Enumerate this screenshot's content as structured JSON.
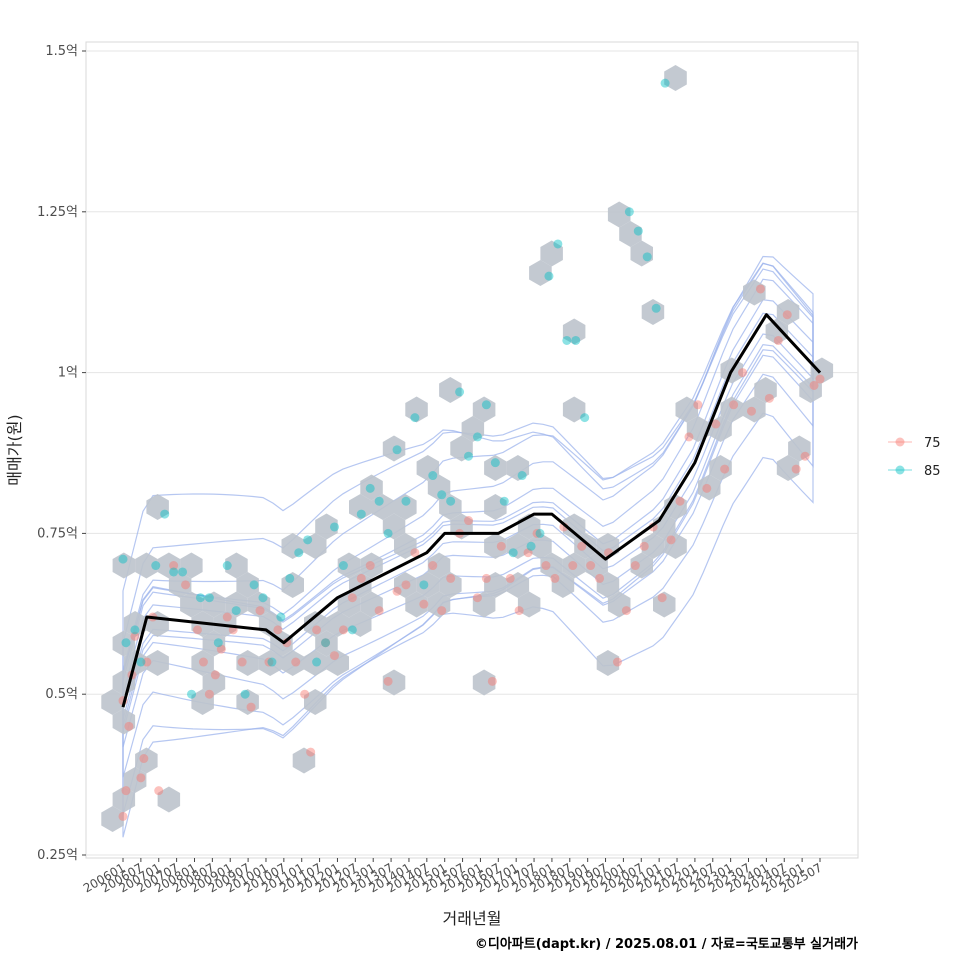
{
  "chart_data": {
    "type": "scatter",
    "xlabel": "거래년월",
    "ylabel": "매매가(원)",
    "caption": "©디아파트(dapt.kr) / 2025.08.01 / 자료=국토교통부 실거래가",
    "grid": true,
    "legend_position": "right",
    "ylim": [
      0.25,
      1.5
    ],
    "y_ticks": [
      {
        "value": 0.25,
        "label": "0.25억"
      },
      {
        "value": 0.5,
        "label": "0.5억"
      },
      {
        "value": 0.75,
        "label": "0.75억"
      },
      {
        "value": 1.0,
        "label": "1억"
      },
      {
        "value": 1.25,
        "label": "1.25억"
      },
      {
        "value": 1.5,
        "label": "1.5억"
      }
    ],
    "x_ticks": [
      "200601",
      "200607",
      "200701",
      "200707",
      "200801",
      "200807",
      "200901",
      "200907",
      "201001",
      "201007",
      "201101",
      "201107",
      "201201",
      "201207",
      "201301",
      "201307",
      "201401",
      "201407",
      "201501",
      "201507",
      "201601",
      "201607",
      "201701",
      "201707",
      "201801",
      "201807",
      "201901",
      "201907",
      "202001",
      "202007",
      "202101",
      "202107",
      "202201",
      "202207",
      "202301",
      "202307",
      "202401",
      "202407",
      "202501",
      "202507"
    ],
    "series": [
      {
        "name": "75",
        "color": "#F8766D",
        "points": [
          [
            "200601",
            0.49
          ],
          [
            "200601",
            0.31
          ],
          [
            "200602",
            0.35
          ],
          [
            "200603",
            0.45
          ],
          [
            "200604",
            0.53
          ],
          [
            "200605",
            0.59
          ],
          [
            "200607",
            0.37
          ],
          [
            "200608",
            0.4
          ],
          [
            "200609",
            0.55
          ],
          [
            "200611",
            0.62
          ],
          [
            "200701",
            0.35
          ],
          [
            "200706",
            0.7
          ],
          [
            "200710",
            0.67
          ],
          [
            "200802",
            0.6
          ],
          [
            "200804",
            0.55
          ],
          [
            "200806",
            0.5
          ],
          [
            "200808",
            0.53
          ],
          [
            "200810",
            0.57
          ],
          [
            "200812",
            0.62
          ],
          [
            "200902",
            0.6
          ],
          [
            "200905",
            0.55
          ],
          [
            "200908",
            0.48
          ],
          [
            "200911",
            0.63
          ],
          [
            "201002",
            0.55
          ],
          [
            "201005",
            0.6
          ],
          [
            "201008",
            0.58
          ],
          [
            "201011",
            0.55
          ],
          [
            "201102",
            0.5
          ],
          [
            "201104",
            0.41
          ],
          [
            "201106",
            0.6
          ],
          [
            "201109",
            0.58
          ],
          [
            "201112",
            0.56
          ],
          [
            "201203",
            0.6
          ],
          [
            "201206",
            0.65
          ],
          [
            "201209",
            0.68
          ],
          [
            "201212",
            0.7
          ],
          [
            "201303",
            0.63
          ],
          [
            "201306",
            0.52
          ],
          [
            "201309",
            0.66
          ],
          [
            "201312",
            0.67
          ],
          [
            "201403",
            0.72
          ],
          [
            "201406",
            0.64
          ],
          [
            "201409",
            0.7
          ],
          [
            "201412",
            0.63
          ],
          [
            "201503",
            0.68
          ],
          [
            "201506",
            0.75
          ],
          [
            "201509",
            0.77
          ],
          [
            "201512",
            0.65
          ],
          [
            "201603",
            0.68
          ],
          [
            "201605",
            0.52
          ],
          [
            "201608",
            0.73
          ],
          [
            "201611",
            0.68
          ],
          [
            "201702",
            0.63
          ],
          [
            "201705",
            0.72
          ],
          [
            "201708",
            0.75
          ],
          [
            "201711",
            0.7
          ],
          [
            "201802",
            0.68
          ],
          [
            "201805",
            0.76
          ],
          [
            "201808",
            0.7
          ],
          [
            "201811",
            0.73
          ],
          [
            "201902",
            0.7
          ],
          [
            "201905",
            0.68
          ],
          [
            "201908",
            0.72
          ],
          [
            "201911",
            0.55
          ],
          [
            "202002",
            0.63
          ],
          [
            "202005",
            0.7
          ],
          [
            "202008",
            0.73
          ],
          [
            "202011",
            0.76
          ],
          [
            "202102",
            0.65
          ],
          [
            "202105",
            0.74
          ],
          [
            "202108",
            0.8
          ],
          [
            "202111",
            0.9
          ],
          [
            "202202",
            0.95
          ],
          [
            "202205",
            0.82
          ],
          [
            "202208",
            0.92
          ],
          [
            "202211",
            0.85
          ],
          [
            "202302",
            0.95
          ],
          [
            "202305",
            1.0
          ],
          [
            "202308",
            0.94
          ],
          [
            "202311",
            1.13
          ],
          [
            "202402",
            0.96
          ],
          [
            "202405",
            1.05
          ],
          [
            "202408",
            1.09
          ],
          [
            "202411",
            0.85
          ],
          [
            "202502",
            0.87
          ],
          [
            "202505",
            0.98
          ],
          [
            "202507",
            0.99
          ]
        ]
      },
      {
        "name": "85",
        "color": "#00BFC4",
        "points": [
          [
            "200601",
            0.71
          ],
          [
            "200602",
            0.58
          ],
          [
            "200605",
            0.6
          ],
          [
            "200607",
            0.55
          ],
          [
            "200612",
            0.7
          ],
          [
            "200703",
            0.78
          ],
          [
            "200706",
            0.69
          ],
          [
            "200709",
            0.69
          ],
          [
            "200712",
            0.5
          ],
          [
            "200803",
            0.65
          ],
          [
            "200806",
            0.65
          ],
          [
            "200809",
            0.58
          ],
          [
            "200812",
            0.7
          ],
          [
            "200903",
            0.63
          ],
          [
            "200906",
            0.5
          ],
          [
            "200909",
            0.67
          ],
          [
            "200912",
            0.65
          ],
          [
            "201003",
            0.55
          ],
          [
            "201006",
            0.62
          ],
          [
            "201009",
            0.68
          ],
          [
            "201012",
            0.72
          ],
          [
            "201103",
            0.74
          ],
          [
            "201106",
            0.55
          ],
          [
            "201109",
            0.58
          ],
          [
            "201112",
            0.76
          ],
          [
            "201203",
            0.7
          ],
          [
            "201206",
            0.6
          ],
          [
            "201209",
            0.78
          ],
          [
            "201212",
            0.82
          ],
          [
            "201303",
            0.8
          ],
          [
            "201306",
            0.75
          ],
          [
            "201309",
            0.88
          ],
          [
            "201312",
            0.8
          ],
          [
            "201403",
            0.93
          ],
          [
            "201406",
            0.67
          ],
          [
            "201409",
            0.84
          ],
          [
            "201412",
            0.81
          ],
          [
            "201503",
            0.8
          ],
          [
            "201506",
            0.97
          ],
          [
            "201509",
            0.87
          ],
          [
            "201512",
            0.9
          ],
          [
            "201603",
            0.95
          ],
          [
            "201606",
            0.86
          ],
          [
            "201609",
            0.8
          ],
          [
            "201612",
            0.72
          ],
          [
            "201703",
            0.84
          ],
          [
            "201706",
            0.73
          ],
          [
            "201709",
            0.75
          ],
          [
            "201712",
            1.15
          ],
          [
            "201803",
            1.2
          ],
          [
            "201806",
            1.05
          ],
          [
            "201809",
            1.05
          ],
          [
            "201812",
            0.93
          ],
          [
            "202003",
            1.25
          ],
          [
            "202006",
            1.22
          ],
          [
            "202009",
            1.18
          ],
          [
            "202012",
            1.1
          ],
          [
            "202103",
            1.45
          ]
        ]
      }
    ],
    "trend": {
      "name": "moving average",
      "color": "#000000",
      "x": [
        "200601",
        "200609",
        "201001",
        "201007",
        "201201",
        "201407",
        "201501",
        "201607",
        "201707",
        "201801",
        "201907",
        "202101",
        "202201",
        "202301",
        "202401",
        "202507"
      ],
      "y": [
        0.48,
        0.62,
        0.6,
        0.58,
        0.65,
        0.72,
        0.75,
        0.75,
        0.78,
        0.78,
        0.71,
        0.77,
        0.86,
        1.0,
        1.09,
        1.0
      ]
    },
    "hex_density": true,
    "contour_color": "#9DB4EC"
  }
}
